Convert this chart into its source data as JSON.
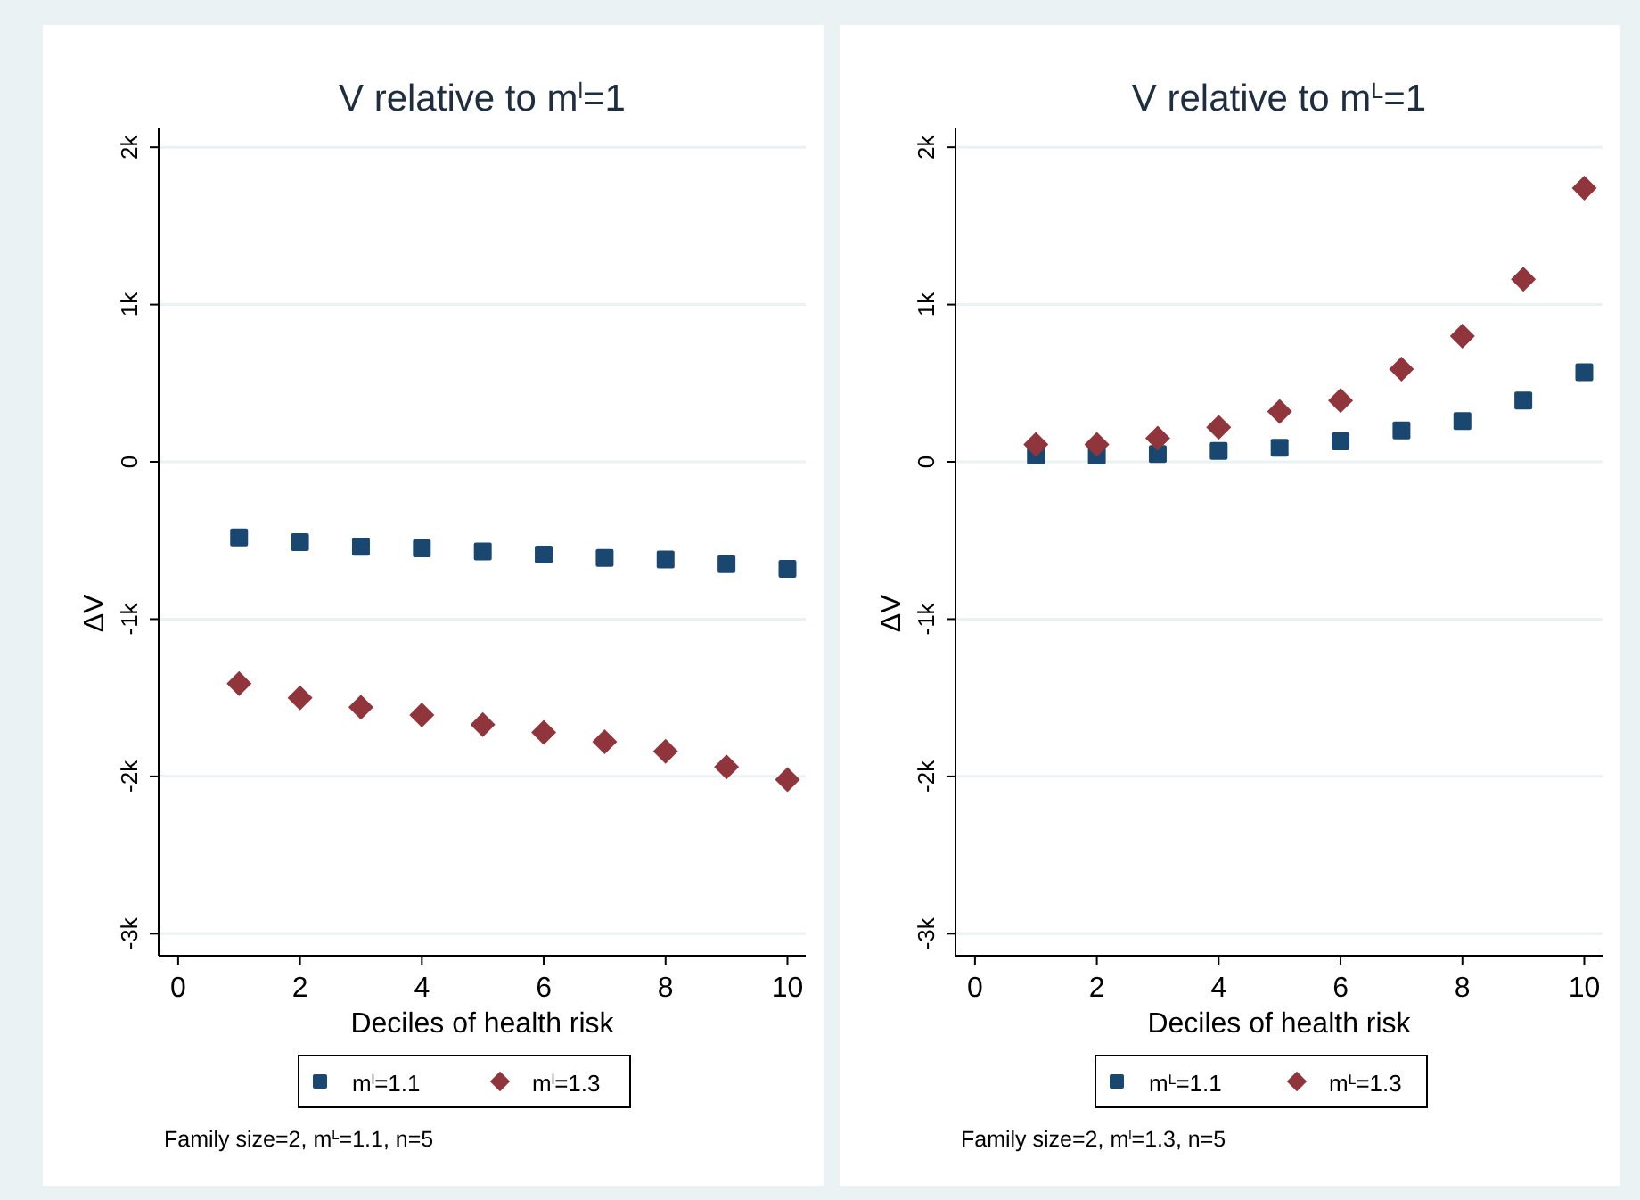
{
  "chart_data": [
    {
      "type": "scatter",
      "title": "V relative to m$^{l}$=1",
      "xlabel": "Deciles of health risk",
      "ylabel": "ΔV",
      "x": [
        1,
        2,
        3,
        4,
        5,
        6,
        7,
        8,
        9,
        10
      ],
      "series": [
        {
          "name": "m$^{l}$=1.1",
          "color": "#1a476f",
          "marker": "square",
          "values": [
            -480,
            -510,
            -540,
            -550,
            -570,
            -590,
            -610,
            -620,
            -650,
            -680
          ]
        },
        {
          "name": "m$^{l}$=1.3",
          "color": "#90353b",
          "marker": "diamond",
          "values": [
            -1410,
            -1500,
            -1560,
            -1610,
            -1670,
            -1720,
            -1780,
            -1840,
            -1940,
            -2020
          ]
        }
      ],
      "xlim": [
        -0.32,
        10.3
      ],
      "xticks": [
        0,
        2,
        4,
        6,
        8,
        10
      ],
      "ylim": [
        -3140,
        2120
      ],
      "yticks": [
        {
          "value": -3000,
          "label": "-3k"
        },
        {
          "value": -2000,
          "label": "-2k"
        },
        {
          "value": -1000,
          "label": "-1k"
        },
        0,
        {
          "value": 1000,
          "label": "1k"
        },
        {
          "value": 2000,
          "label": "2k"
        }
      ],
      "grid": "y",
      "legend": "bottom",
      "annotations": [
        "Family size=2, m$^{L}$=1.1, n=5"
      ]
    },
    {
      "type": "scatter",
      "title": "V relative to m$^{L}$=1",
      "xlabel": "Deciles of health risk",
      "ylabel": "ΔV",
      "x": [
        1,
        2,
        3,
        4,
        5,
        6,
        7,
        8,
        9,
        10
      ],
      "series": [
        {
          "name": "m$^{L}$=1.1",
          "color": "#1a476f",
          "marker": "square",
          "values": [
            40,
            40,
            50,
            70,
            90,
            130,
            200,
            260,
            390,
            570
          ]
        },
        {
          "name": "m$^{L}$=1.3",
          "color": "#90353b",
          "marker": "diamond",
          "values": [
            110,
            110,
            150,
            220,
            320,
            390,
            590,
            800,
            1160,
            1740
          ]
        }
      ],
      "xlim": [
        -0.32,
        10.3
      ],
      "xticks": [
        0,
        2,
        4,
        6,
        8,
        10
      ],
      "ylim": [
        -3140,
        2120
      ],
      "yticks": [
        {
          "value": -3000,
          "label": "-3k"
        },
        {
          "value": -2000,
          "label": "-2k"
        },
        {
          "value": -1000,
          "label": "-1k"
        },
        0,
        {
          "value": 1000,
          "label": "1k"
        },
        {
          "value": 2000,
          "label": "2k"
        }
      ],
      "grid": "y",
      "legend": "bottom",
      "annotations": [
        "Family size=2, m$^{l}$=1.3, n=5"
      ]
    }
  ]
}
